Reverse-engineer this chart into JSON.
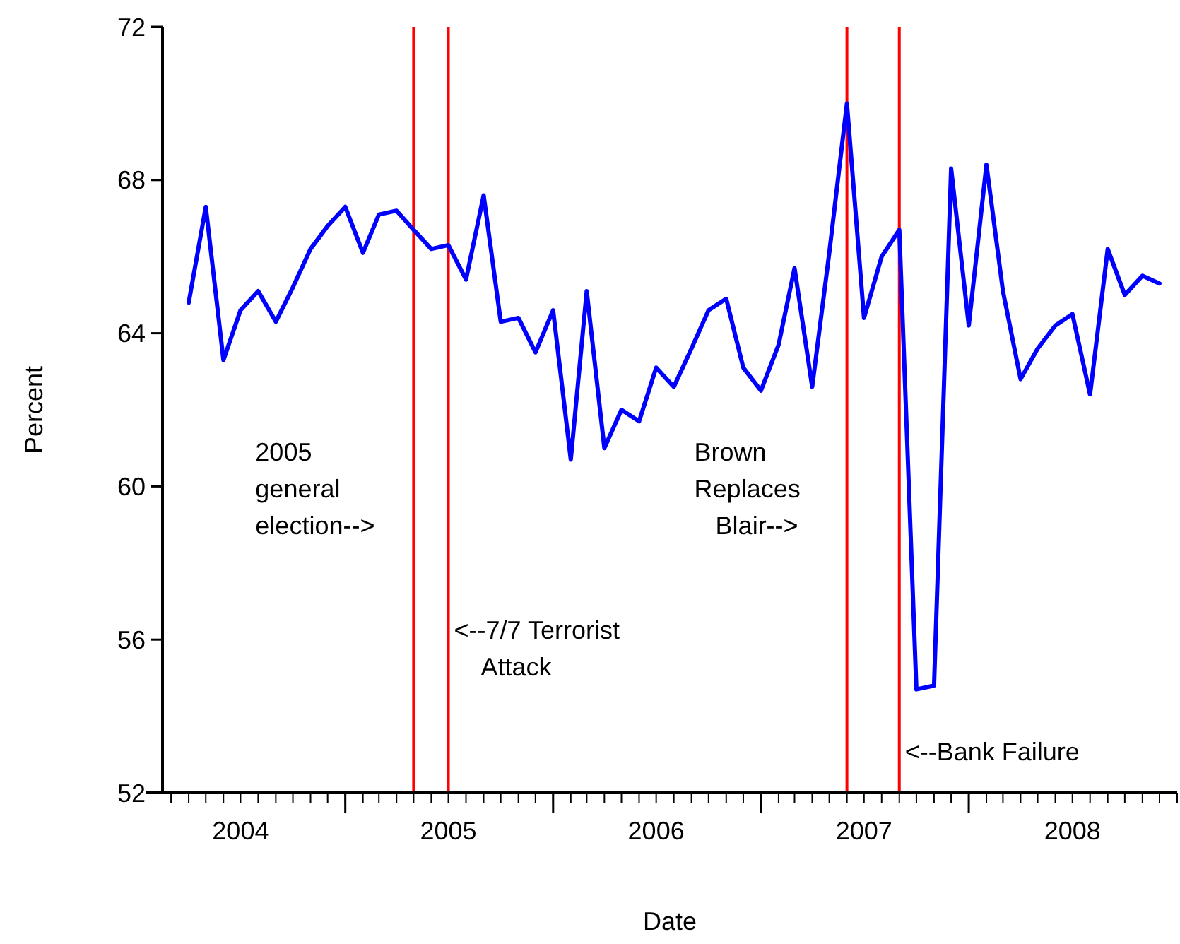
{
  "chart_data": {
    "type": "line",
    "xlabel": "Date",
    "ylabel": "Percent",
    "x": [
      "2004-04",
      "2004-05",
      "2004-06",
      "2004-07",
      "2004-08",
      "2004-09",
      "2004-10",
      "2004-11",
      "2004-12",
      "2005-01",
      "2005-02",
      "2005-03",
      "2005-04",
      "2005-05",
      "2005-06",
      "2005-07",
      "2005-08",
      "2005-09",
      "2005-10",
      "2005-11",
      "2005-12",
      "2006-01",
      "2006-02",
      "2006-03",
      "2006-04",
      "2006-05",
      "2006-06",
      "2006-07",
      "2006-08",
      "2006-09",
      "2006-10",
      "2006-11",
      "2006-12",
      "2007-01",
      "2007-02",
      "2007-03",
      "2007-04",
      "2007-05",
      "2007-06",
      "2007-07",
      "2007-08",
      "2007-09",
      "2007-10",
      "2007-11",
      "2007-12",
      "2008-01",
      "2008-02",
      "2008-03",
      "2008-04",
      "2008-05",
      "2008-06",
      "2008-07",
      "2008-08",
      "2008-09",
      "2008-10",
      "2008-11",
      "2008-12"
    ],
    "series": [
      {
        "color": "#0000ff",
        "values": [
          64.8,
          67.3,
          63.3,
          64.6,
          65.1,
          64.3,
          65.2,
          66.2,
          66.8,
          67.3,
          66.1,
          67.1,
          67.2,
          66.7,
          66.2,
          66.3,
          65.4,
          67.6,
          64.3,
          64.4,
          63.5,
          64.6,
          60.7,
          65.1,
          61.0,
          62.0,
          61.7,
          63.1,
          62.6,
          63.6,
          64.6,
          64.9,
          63.1,
          62.5,
          63.7,
          65.7,
          62.6,
          66.1,
          70.0,
          64.4,
          66.0,
          66.7,
          54.7,
          54.8,
          68.3,
          64.2,
          68.4,
          65.1,
          62.8,
          63.6,
          64.2,
          64.5,
          62.4,
          66.2,
          65.0,
          65.5,
          65.3
        ]
      }
    ],
    "xlim": [
      "2004-02-15",
      "2009-01-01"
    ],
    "xticks": [
      {
        "value": "2004-07-01",
        "label": "2004"
      },
      {
        "value": "2005-01-01",
        "label": null
      },
      {
        "value": "2005-07-01",
        "label": "2005"
      },
      {
        "value": "2006-01-01",
        "label": null
      },
      {
        "value": "2006-07-01",
        "label": "2006"
      },
      {
        "value": "2007-01-01",
        "label": null
      },
      {
        "value": "2007-07-01",
        "label": "2007"
      },
      {
        "value": "2008-01-01",
        "label": null
      },
      {
        "value": "2008-07-01",
        "label": "2008"
      }
    ],
    "ylim": [
      52,
      72
    ],
    "yticks": [
      52,
      56,
      60,
      64,
      68,
      72
    ],
    "grid": false,
    "marker": "none",
    "line_style": "solid",
    "ref_lines": [
      {
        "axis": "x",
        "value": "2005-05",
        "color": "#ff0000",
        "label": "2005\ngeneral\nelection-->"
      },
      {
        "axis": "x",
        "value": "2005-07",
        "color": "#ff0000",
        "label": "<--7/7 Terrorist\n    Attack"
      },
      {
        "axis": "x",
        "value": "2007-06",
        "color": "#ff0000",
        "label": "Brown\nReplaces\n   Blair-->"
      },
      {
        "axis": "x",
        "value": "2007-09",
        "color": "#ff0000",
        "label": "<--Bank Failure"
      }
    ]
  }
}
